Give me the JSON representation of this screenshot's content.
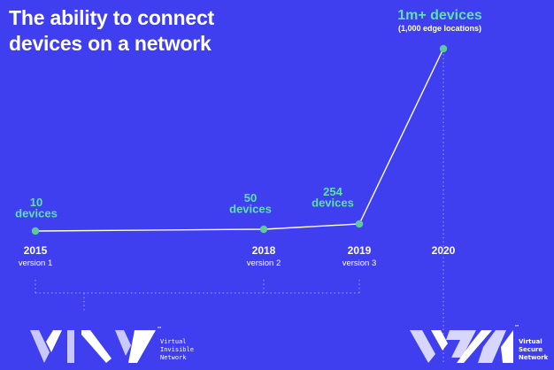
{
  "title": {
    "line1": "The ability to connect",
    "line2": "devices on a network"
  },
  "chart_data": {
    "type": "line",
    "title": "The ability to connect devices on a network",
    "x": [
      "2015",
      "2018",
      "2019",
      "2020"
    ],
    "version_labels": [
      "version 1",
      "version 2",
      "version 3",
      ""
    ],
    "values": [
      10,
      50,
      254,
      1000000
    ],
    "data_labels": [
      [
        "10",
        "devices"
      ],
      [
        "50",
        "devices"
      ],
      [
        "254",
        "devices"
      ],
      [
        "1m+ devices"
      ]
    ],
    "annotation": "(1,000 edge locations)",
    "grid": false,
    "legend": "none",
    "colors": {
      "background": "#3f3ff0",
      "line": "#ffffff",
      "marker": "#5ec99a",
      "value_label": "#5ee0b0",
      "text": "#ffffff",
      "bracket": "#9fa0ff"
    }
  },
  "logos": {
    "vin": {
      "icon": "vin-logo-icon",
      "lines": [
        "Virtual",
        "Invisible",
        "Network"
      ],
      "tm": "™"
    },
    "vsn": {
      "icon": "vsn-logo-icon",
      "lines": [
        "Virtual",
        "Secure",
        "Network"
      ],
      "tm": "™"
    }
  }
}
